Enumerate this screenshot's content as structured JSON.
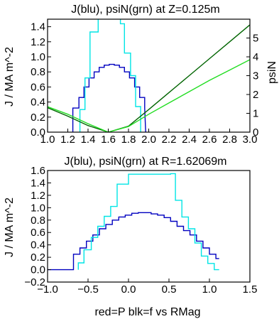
{
  "colors": {
    "blue": "#0000c0",
    "cyan": "#00e5e5",
    "darkgreen": "#006400",
    "green": "#22dd22"
  },
  "chart_data": [
    {
      "type": "line",
      "title": "J(blu), psiN(grn) at Z=0.125m",
      "ylabel": "J / MA m^-2",
      "y2label": "psiN",
      "xlim": [
        1.0,
        3.0
      ],
      "ylim": [
        0.0,
        1.5
      ],
      "y2lim": [
        0,
        6
      ],
      "xticks": [
        "1.0",
        "1.2",
        "1.4",
        "1.6",
        "1.8",
        "2.0",
        "2.2",
        "2.4",
        "2.6",
        "2.8",
        "3.0"
      ],
      "yticks": [
        "0.0",
        "0.2",
        "0.4",
        "0.6",
        "0.8",
        "1.0",
        "1.2",
        "1.4"
      ],
      "y2ticks": [
        "0",
        "1",
        "2",
        "3",
        "4",
        "5"
      ],
      "series": [
        {
          "color": "blue",
          "axis": "left",
          "x": [
            1.25,
            1.25,
            1.31,
            1.31,
            1.36,
            1.36,
            1.41,
            1.41,
            1.46,
            1.46,
            1.51,
            1.51,
            1.56,
            1.56,
            1.61,
            1.61,
            1.66,
            1.66,
            1.71,
            1.71,
            1.76,
            1.76,
            1.81,
            1.81,
            1.86,
            1.86,
            1.91,
            1.91,
            1.96,
            1.96,
            1.97
          ],
          "y": [
            0.0,
            0.32,
            0.32,
            0.46,
            0.46,
            0.6,
            0.6,
            0.72,
            0.72,
            0.8,
            0.8,
            0.86,
            0.86,
            0.89,
            0.89,
            0.9,
            0.9,
            0.89,
            0.89,
            0.86,
            0.86,
            0.8,
            0.8,
            0.72,
            0.72,
            0.6,
            0.6,
            0.46,
            0.46,
            0.32,
            0.0
          ]
        },
        {
          "color": "cyan",
          "axis": "left",
          "x": [
            1.32,
            1.32,
            1.37,
            1.37,
            1.42,
            1.42,
            1.5,
            1.5,
            1.72,
            1.72,
            1.76,
            1.76,
            1.82,
            1.82,
            1.87,
            1.87,
            1.92,
            1.92
          ],
          "y": [
            0.0,
            0.3,
            0.3,
            0.72,
            0.72,
            1.33,
            1.33,
            1.55,
            1.55,
            1.44,
            1.44,
            1.05,
            1.05,
            0.75,
            0.75,
            0.34,
            0.34,
            0.0
          ]
        },
        {
          "color": "darkgreen",
          "axis": "right",
          "x": [
            1.0,
            1.2,
            1.4,
            1.6,
            1.8,
            2.0,
            2.2,
            2.4,
            2.6,
            2.8,
            3.0
          ],
          "y": [
            1.3,
            0.85,
            0.35,
            0.0,
            0.32,
            1.2,
            2.1,
            3.0,
            3.9,
            4.8,
            5.7
          ]
        },
        {
          "color": "green",
          "axis": "right",
          "x": [
            1.0,
            1.2,
            1.4,
            1.6,
            1.8,
            2.0,
            2.2,
            2.4,
            2.6,
            2.8,
            3.0
          ],
          "y": [
            1.35,
            0.95,
            0.45,
            0.0,
            0.3,
            0.95,
            1.55,
            2.15,
            2.75,
            3.3,
            3.85
          ]
        }
      ]
    },
    {
      "type": "line",
      "title": "J(blu), psiN(grn) at R=1.62069m",
      "xlabel": "red=P blk=f vs RMag",
      "ylabel": "J / MA m^-2",
      "xlim": [
        -1.0,
        1.5
      ],
      "ylim": [
        -0.2,
        1.6
      ],
      "xticks": [
        "−1.0",
        "−0.5",
        "0.0",
        "0.5",
        "1.0",
        "1.5"
      ],
      "yticks": [
        "−0.2",
        "0.0",
        "0.2",
        "0.4",
        "0.6",
        "0.8",
        "1.0",
        "1.2",
        "1.4",
        "1.6"
      ],
      "series": [
        {
          "color": "blue",
          "axis": "left",
          "x": [
            -1.0,
            -0.68,
            -0.68,
            -0.6,
            -0.6,
            -0.52,
            -0.52,
            -0.44,
            -0.44,
            -0.36,
            -0.36,
            -0.28,
            -0.28,
            -0.2,
            -0.2,
            -0.12,
            -0.12,
            -0.04,
            -0.04,
            0.04,
            0.04,
            0.12,
            0.12,
            0.2,
            0.2,
            0.28,
            0.28,
            0.36,
            0.36,
            0.44,
            0.44,
            0.52,
            0.52,
            0.6,
            0.6,
            0.68,
            0.68,
            0.76,
            0.76,
            0.84,
            0.84,
            0.92,
            0.92,
            1.0,
            1.0,
            1.08,
            1.08,
            1.12
          ],
          "y": [
            0.0,
            0.0,
            0.25,
            0.25,
            0.35,
            0.35,
            0.46,
            0.46,
            0.56,
            0.56,
            0.66,
            0.66,
            0.73,
            0.73,
            0.8,
            0.8,
            0.85,
            0.85,
            0.88,
            0.88,
            0.91,
            0.91,
            0.92,
            0.92,
            0.92,
            0.92,
            0.9,
            0.9,
            0.88,
            0.88,
            0.84,
            0.84,
            0.78,
            0.78,
            0.7,
            0.7,
            0.63,
            0.63,
            0.56,
            0.56,
            0.46,
            0.46,
            0.35,
            0.35,
            0.25,
            0.25,
            0.18,
            0.18
          ]
        },
        {
          "color": "cyan",
          "axis": "left",
          "x": [
            -0.62,
            -0.62,
            -0.55,
            -0.55,
            -0.46,
            -0.46,
            -0.38,
            -0.38,
            -0.3,
            -0.3,
            -0.22,
            -0.22,
            -0.14,
            -0.14,
            0.0,
            0.0,
            0.52,
            0.52,
            0.58,
            0.58,
            0.66,
            0.66,
            0.74,
            0.74,
            0.82,
            0.82,
            0.9,
            0.9,
            0.98,
            0.98,
            1.06,
            1.06,
            1.12
          ],
          "y": [
            0.0,
            0.11,
            0.11,
            0.32,
            0.32,
            0.52,
            0.52,
            0.7,
            0.7,
            0.86,
            0.86,
            1.02,
            1.02,
            1.38,
            1.38,
            1.54,
            1.54,
            1.55,
            1.55,
            1.12,
            1.12,
            0.85,
            0.85,
            0.66,
            0.66,
            0.43,
            0.43,
            0.22,
            0.22,
            0.1,
            0.1,
            0.0,
            0.0
          ]
        }
      ]
    }
  ]
}
